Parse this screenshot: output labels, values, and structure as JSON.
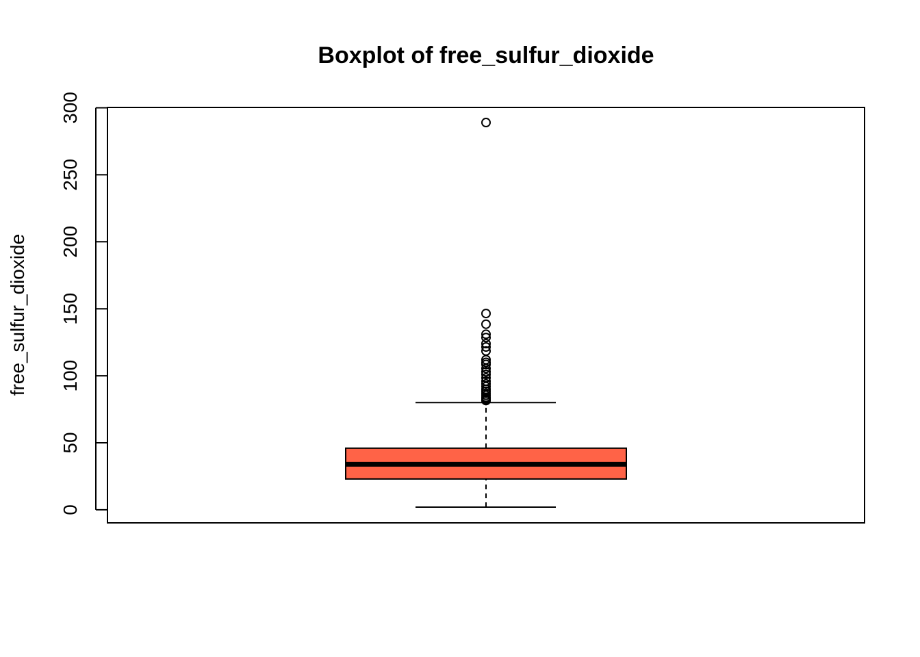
{
  "chart_data": {
    "type": "boxplot",
    "title": "Boxplot of free_sulfur_dioxide",
    "xlabel": "",
    "ylabel": "free_sulfur_dioxide",
    "ylim": [
      -10,
      300
    ],
    "yticks": [
      0,
      50,
      100,
      150,
      200,
      250,
      300
    ],
    "grid": false,
    "box": {
      "min": 2,
      "q1": 23,
      "median": 34,
      "q3": 46,
      "max": 80,
      "fill_color": "#FF6347"
    },
    "outliers": [
      289,
      146.5,
      138.5,
      131,
      128.5,
      124,
      121.5,
      118.5,
      112,
      110,
      108.5,
      105.5,
      103,
      101,
      98.5,
      96,
      94,
      92,
      90,
      88.5,
      87,
      85.5,
      84,
      83,
      82,
      81.5
    ]
  }
}
